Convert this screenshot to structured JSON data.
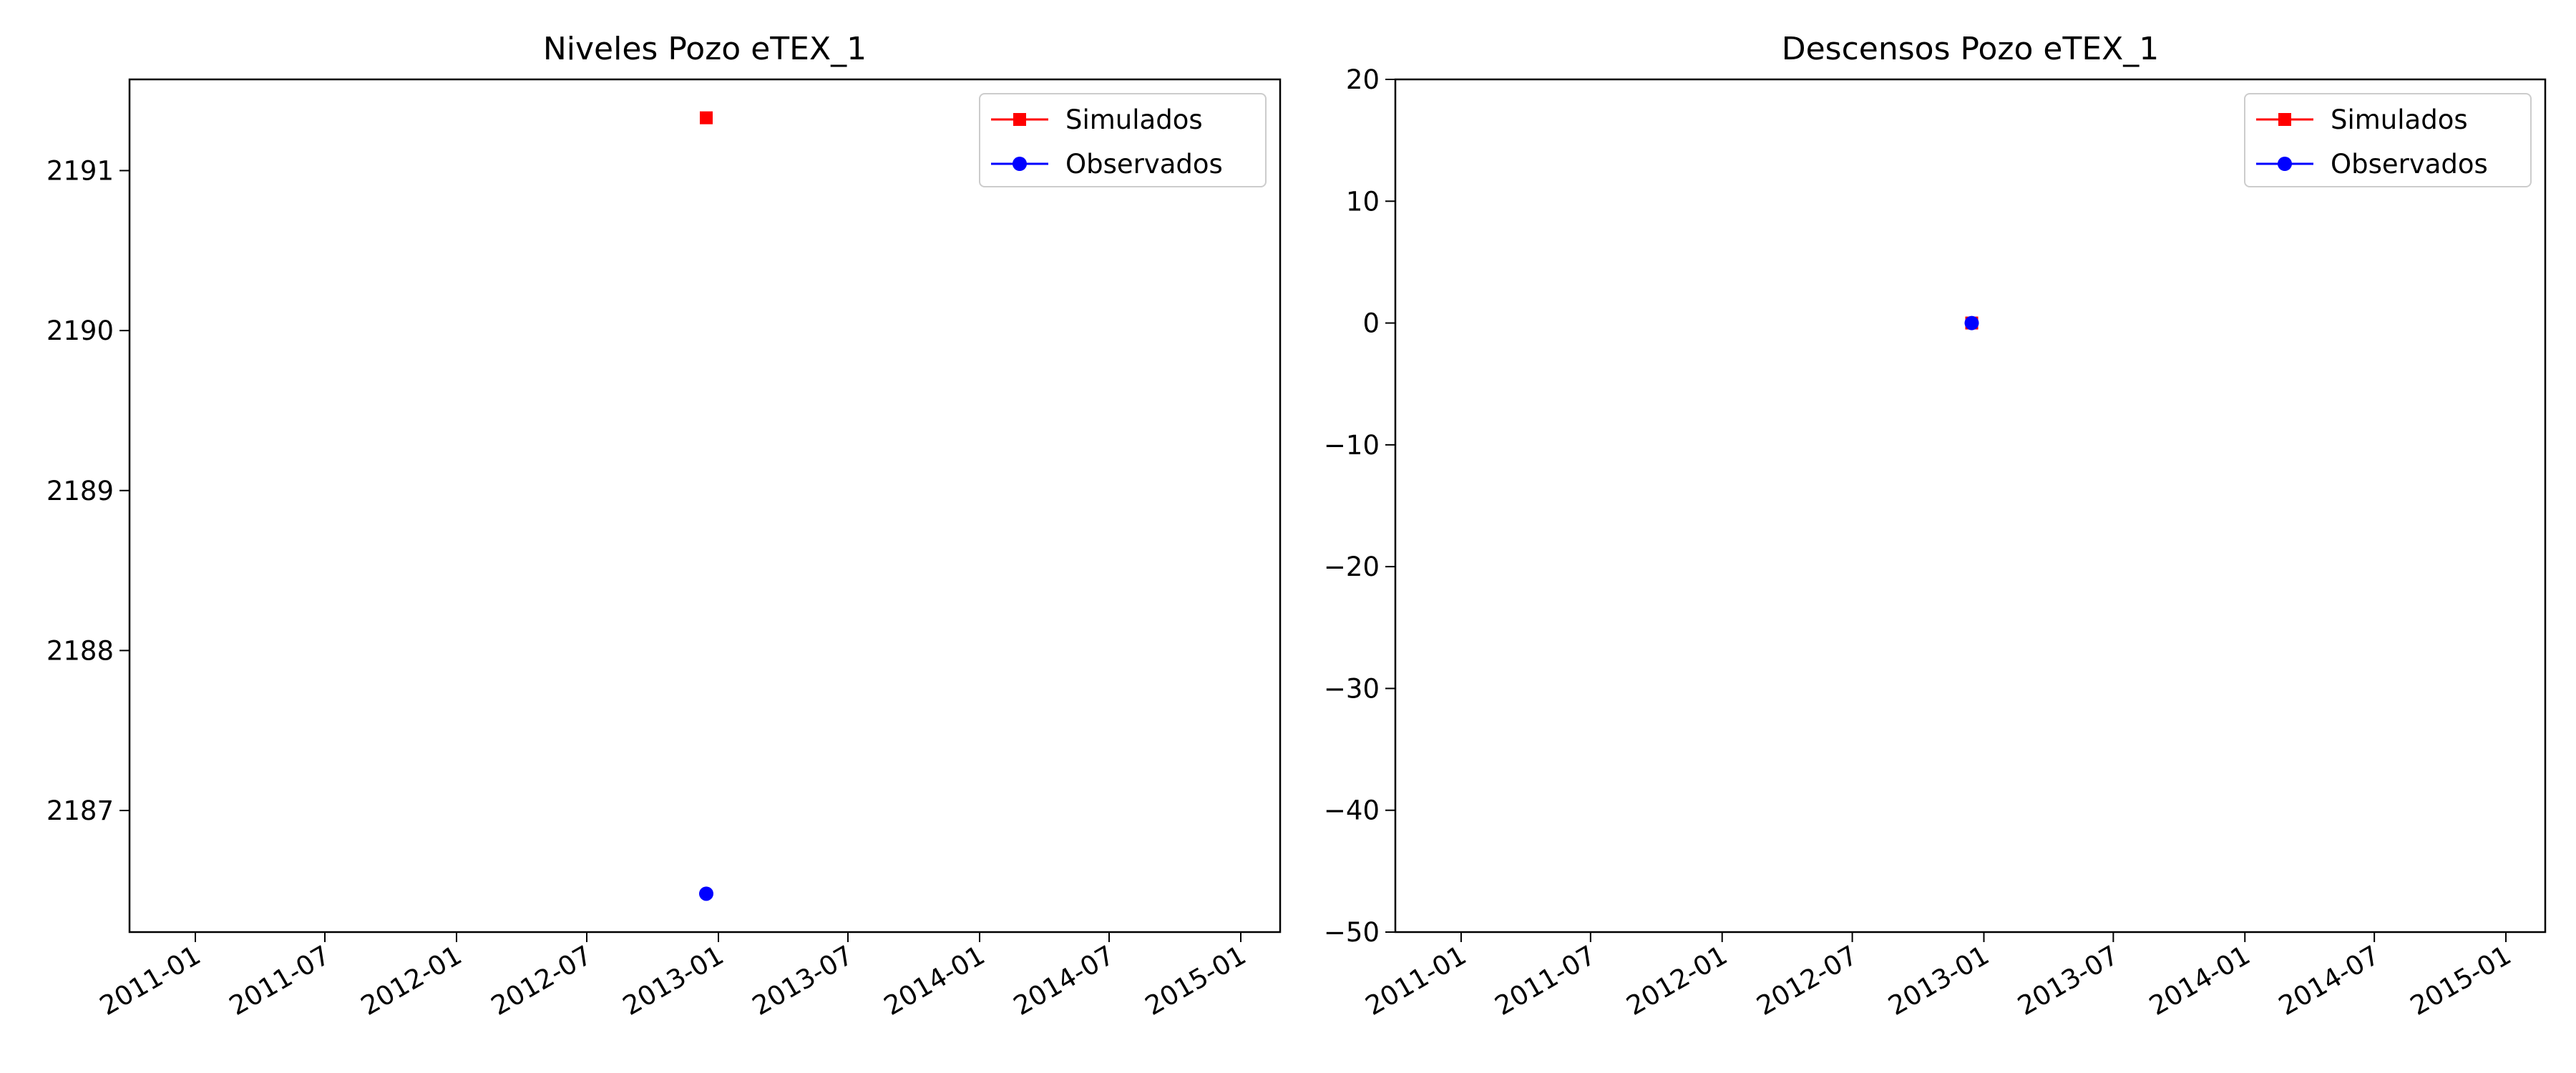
{
  "chart_data": [
    {
      "type": "scatter",
      "title": "Niveles Pozo eTEX_1",
      "xlabel": "",
      "ylabel": "",
      "x_axis": {
        "type": "date",
        "range": [
          "2010-10-01",
          "2015-02-25"
        ],
        "ticks": [
          "2011-01-01",
          "2011-07-01",
          "2012-01-01",
          "2012-07-01",
          "2013-01-01",
          "2013-07-01",
          "2014-01-01",
          "2014-07-01",
          "2015-01-01"
        ],
        "tick_labels": [
          "2011-01",
          "2011-07",
          "2012-01",
          "2012-07",
          "2013-01",
          "2013-07",
          "2014-01",
          "2014-07",
          "2015-01"
        ]
      },
      "y_axis": {
        "range": [
          2186.24,
          2191.57
        ],
        "ticks": [
          2187,
          2188,
          2189,
          2190,
          2191
        ],
        "tick_labels": [
          "2187",
          "2188",
          "2189",
          "2190",
          "2191"
        ]
      },
      "series": [
        {
          "name": "Simulados",
          "color": "#ff0000",
          "marker": "square",
          "x": [
            "2012-12-15"
          ],
          "y": [
            2191.33
          ]
        },
        {
          "name": "Observados",
          "color": "#0000ff",
          "marker": "circle",
          "x": [
            "2012-12-15"
          ],
          "y": [
            2186.48
          ]
        }
      ],
      "legend": {
        "placement": "upper-right",
        "entries": [
          "Simulados",
          "Observados"
        ]
      },
      "grid": false
    },
    {
      "type": "scatter",
      "title": "Descensos Pozo eTEX_1",
      "xlabel": "",
      "ylabel": "",
      "x_axis": {
        "type": "date",
        "range": [
          "2010-10-01",
          "2015-02-25"
        ],
        "ticks": [
          "2011-01-01",
          "2011-07-01",
          "2012-01-01",
          "2012-07-01",
          "2013-01-01",
          "2013-07-01",
          "2014-01-01",
          "2014-07-01",
          "2015-01-01"
        ],
        "tick_labels": [
          "2011-01",
          "2011-07",
          "2012-01",
          "2012-07",
          "2013-01",
          "2013-07",
          "2014-01",
          "2014-07",
          "2015-01"
        ]
      },
      "y_axis": {
        "range": [
          -50,
          20
        ],
        "ticks": [
          20,
          10,
          0,
          -10,
          -20,
          -30,
          -40,
          -50
        ],
        "tick_labels": [
          "20",
          "10",
          "0",
          "−10",
          "−20",
          "−30",
          "−40",
          "−50"
        ]
      },
      "series": [
        {
          "name": "Simulados",
          "color": "#ff0000",
          "marker": "square",
          "x": [
            "2012-12-15"
          ],
          "y": [
            0
          ]
        },
        {
          "name": "Observados",
          "color": "#0000ff",
          "marker": "circle",
          "x": [
            "2012-12-15"
          ],
          "y": [
            0
          ]
        }
      ],
      "legend": {
        "placement": "upper-right",
        "entries": [
          "Simulados",
          "Observados"
        ]
      },
      "grid": false
    }
  ]
}
